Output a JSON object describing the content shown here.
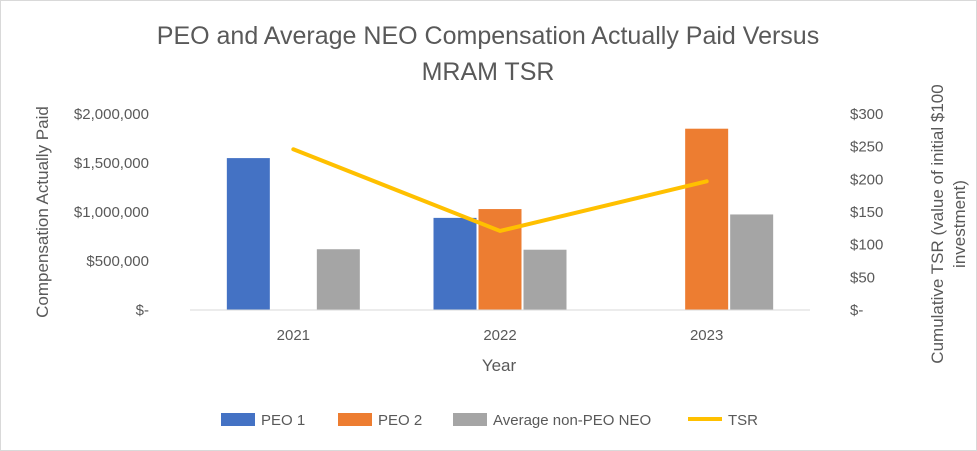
{
  "chart_data": {
    "type": "bar",
    "title_line1": "PEO and Average NEO Compensation Actually Paid Versus",
    "title_line2": "MRAM TSR",
    "categories": [
      "2021",
      "2022",
      "2023"
    ],
    "series": [
      {
        "name": "PEO 1",
        "color": "#4472C4",
        "values": [
          1550000,
          940000,
          null
        ]
      },
      {
        "name": "PEO 2",
        "color": "#ED7D31",
        "values": [
          null,
          1030000,
          1850000
        ]
      },
      {
        "name": "Average non-PEO NEO",
        "color": "#A5A5A5",
        "values": [
          620000,
          615000,
          975000
        ]
      }
    ],
    "line_series": {
      "name": "TSR",
      "color": "#FFC000",
      "values": [
        246,
        121,
        197
      ]
    },
    "xlabel": "Year",
    "ylabel_left": "Compensation Actually Paid",
    "ylabel_right_line1": "Cumulative TSR (value of initial $100",
    "ylabel_right_line2": "investment)",
    "left_axis": {
      "min": 0,
      "max": 2000000,
      "ticks": [
        0,
        500000,
        1000000,
        1500000,
        2000000
      ],
      "tick_labels": [
        "$-",
        "$500,000",
        "$1,000,000",
        "$1,500,000",
        "$2,000,000"
      ]
    },
    "right_axis": {
      "min": 0,
      "max": 300,
      "ticks": [
        0,
        50,
        100,
        150,
        200,
        250,
        300
      ],
      "tick_labels": [
        "$-",
        "$50",
        "$100",
        "$150",
        "$200",
        "$250",
        "$300"
      ]
    },
    "legend_position": "bottom",
    "grid": false
  }
}
